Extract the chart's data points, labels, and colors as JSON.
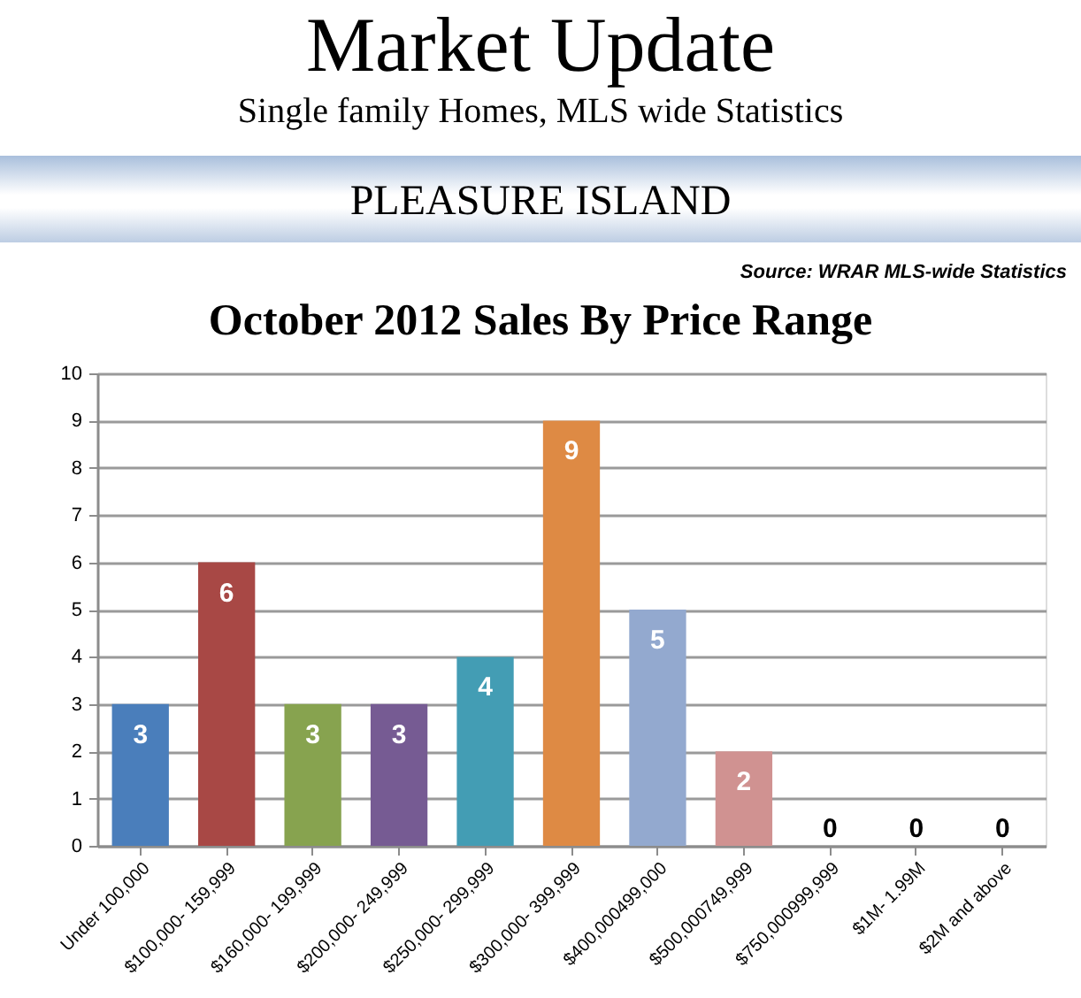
{
  "chart_data": {
    "type": "bar",
    "title": "Market Update",
    "subtitle": "Single family Homes, MLS wide Statistics",
    "annotations": [
      "PLEASURE ISLAND",
      "Source: WRAR MLS-wide Statistics",
      "October 2012 Sales By Price Range"
    ],
    "categories": [
      "Under 100,000",
      "$100,000- 159,999",
      "$160,000- 199,999",
      "$200,000- 249,999",
      "$250,000- 299,999",
      "$300,000- 399,999",
      "$400,000499,000",
      "$500,000749,999",
      "$750,000999,999",
      "$1M- 1.99M",
      "$2M and above"
    ],
    "values": [
      3,
      6,
      3,
      3,
      4,
      9,
      5,
      2,
      0,
      0,
      0
    ],
    "colors": [
      "#4a7ebb",
      "#a84845",
      "#87a34f",
      "#765b93",
      "#439db4",
      "#de8a44",
      "#93a9cf",
      "#d09291",
      "#b9cd96",
      "#b3a2c7",
      "#93cddd"
    ],
    "ylim": [
      0,
      10
    ],
    "yticks": [
      0,
      1,
      2,
      3,
      4,
      5,
      6,
      7,
      8,
      9,
      10
    ],
    "grid": "y",
    "data_labels": true
  }
}
